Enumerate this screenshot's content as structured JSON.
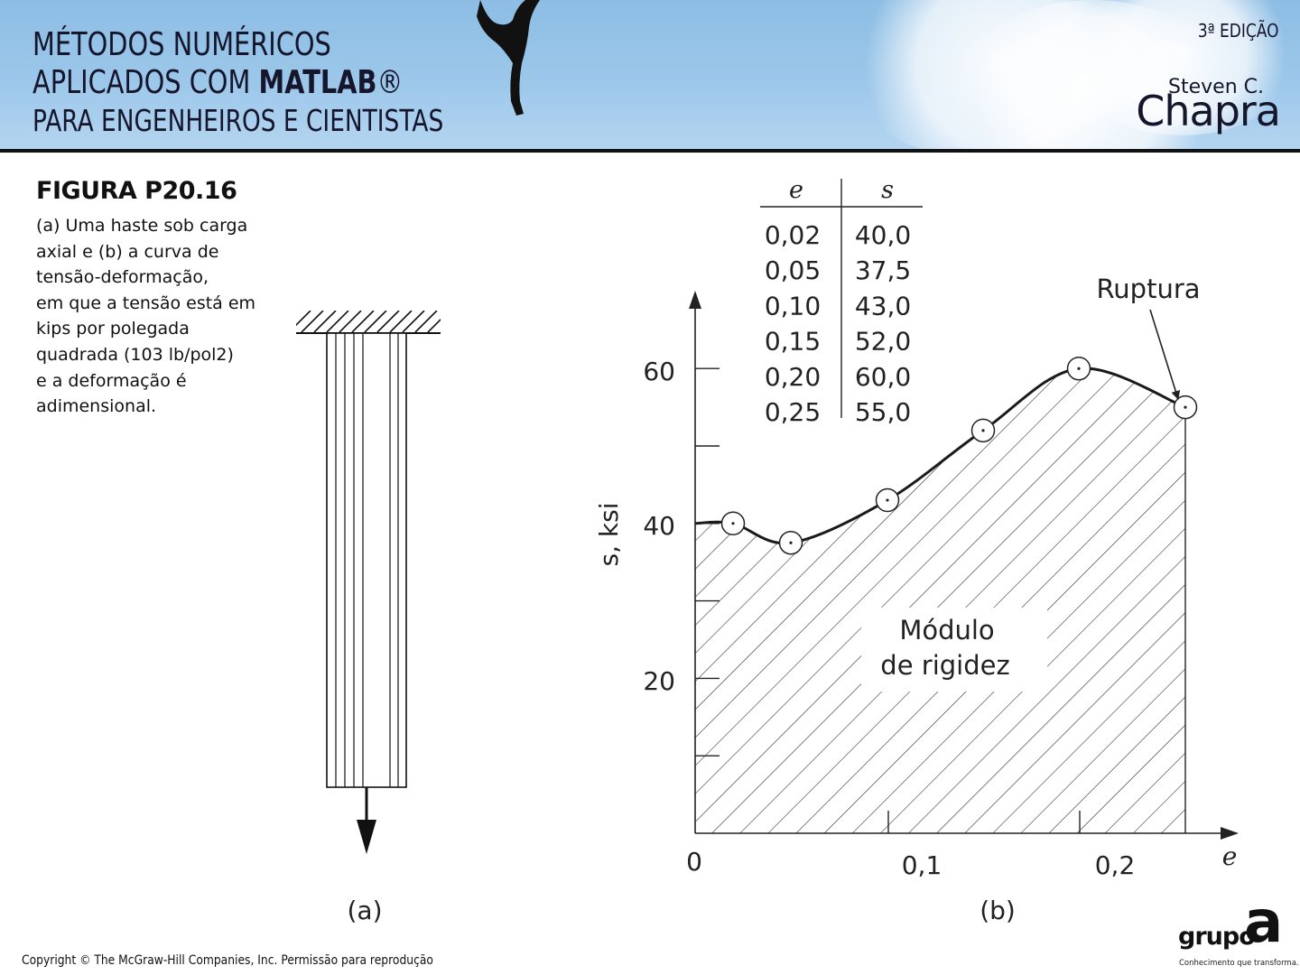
{
  "header": {
    "book_title_line1": "MÉTODOS NUMÉRICOS",
    "book_title_line2_prefix": "APLICADOS COM ",
    "book_title_line2_bold": "MATLAB",
    "book_title_line2_mark": "®",
    "book_title_line3": "PARA ENGENHEIROS E CIENTISTAS",
    "edition": "3ª EDIÇÃO",
    "author_first": "Steven C.",
    "author_last": "Chapra"
  },
  "caption": {
    "figure_label": "FIGURA P20.16",
    "lines": [
      "(a) Uma haste sob carga",
      "axial e (b) a curva de",
      "tensão-deformação,",
      "em que a tensão está em",
      "kips por polegada",
      "quadrada (103 lb/pol2)",
      "e a deformação é",
      "adimensional."
    ]
  },
  "panel_a": {
    "label": "(a)"
  },
  "panel_b": {
    "label": "(b)"
  },
  "chart_data": {
    "type": "line",
    "xlabel": "e",
    "ylabel": "s, ksi",
    "xlim": [
      0,
      0.25
    ],
    "ylim": [
      0,
      60
    ],
    "x_ticks": [
      "0",
      "0,1",
      "0,2"
    ],
    "y_ticks": [
      "20",
      "40",
      "60"
    ],
    "grid": false,
    "fill_under_curve": "hatched",
    "series": [
      {
        "x": [
          0.02,
          0.05,
          0.1,
          0.15,
          0.2,
          0.25
        ],
        "y": [
          40.0,
          37.5,
          43.0,
          52.0,
          60.0,
          55.0
        ]
      }
    ],
    "table": {
      "headers": [
        "e",
        "s"
      ],
      "rows": [
        [
          "0,02",
          "40,0"
        ],
        [
          "0,05",
          "37,5"
        ],
        [
          "0,10",
          "43,0"
        ],
        [
          "0,15",
          "52,0"
        ],
        [
          "0,20",
          "60,0"
        ],
        [
          "0,25",
          "55,0"
        ]
      ]
    },
    "annotations": [
      "Ruptura",
      "Módulo de rigidez"
    ]
  },
  "footer": {
    "copyright": "Copyright © The McGraw-Hill Companies, Inc. Permissão para reprodução",
    "logo_word": "grupo",
    "logo_letter": "a",
    "logo_tagline": "Conhecimento que transforma."
  },
  "colors": {
    "banner_sky": "#9cc7ea",
    "ink": "#111111"
  }
}
